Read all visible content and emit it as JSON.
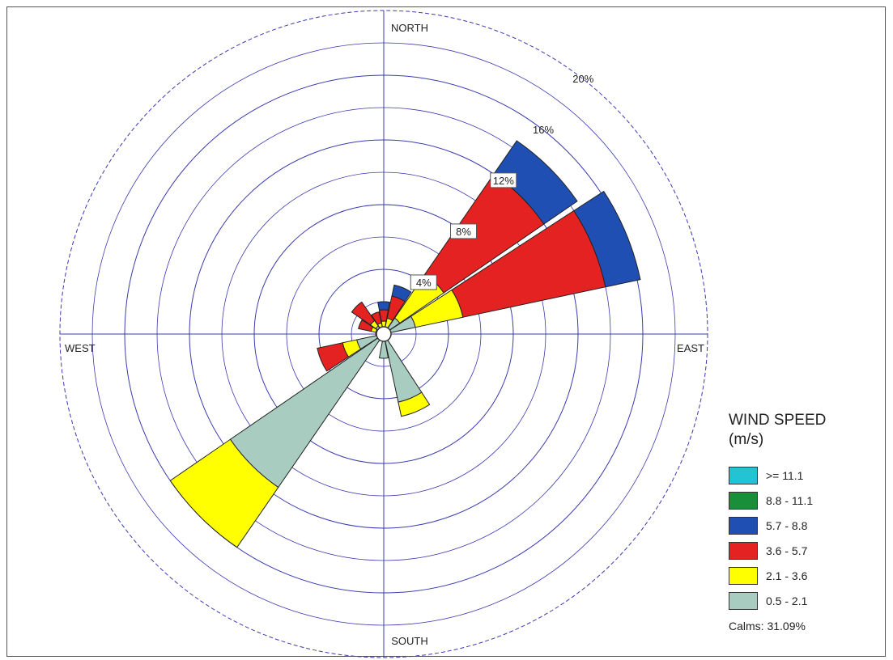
{
  "chart_data": {
    "type": "wind-rose",
    "radial_unit": "%",
    "radial_max": 20,
    "ring_labels": [
      "4%",
      "8%",
      "12%",
      "16%",
      "20%"
    ],
    "ring_values": [
      4,
      8,
      12,
      16,
      20
    ],
    "direction_labels": {
      "north": "NORTH",
      "south": "SOUTH",
      "east": "EAST",
      "west": "WEST"
    },
    "legend_title": "WIND SPEED",
    "legend_unit": "(m/s)",
    "speed_bins": [
      {
        "label": ">= 11.1",
        "color": "#22c4d4"
      },
      {
        "label": "8.8 - 11.1",
        "color": "#1a8f3a"
      },
      {
        "label": "5.7 -  8.8",
        "color": "#1f4fb3"
      },
      {
        "label": "3.6 -  5.7",
        "color": "#e52222"
      },
      {
        "label": "2.1 -  3.6",
        "color": "#ffff00"
      },
      {
        "label": "0.5 -  2.1",
        "color": "#a9ccc0"
      }
    ],
    "calms": "Calms: 31.09%",
    "sectors": [
      {
        "direction_deg": 0,
        "cumulative": [
          0.2,
          0.8,
          1.5,
          2.0
        ]
      },
      {
        "direction_deg": 22.5,
        "cumulative": [
          0.3,
          1.0,
          2.4,
          3.1
        ]
      },
      {
        "direction_deg": 45,
        "cumulative": [
          1.2,
          4.5,
          12.0,
          14.5
        ]
      },
      {
        "direction_deg": 67.5,
        "cumulative": [
          2.0,
          5.0,
          14.0,
          16.2
        ]
      },
      {
        "direction_deg": 90,
        "cumulative": [
          0.3,
          0.4,
          0.4,
          0.4
        ]
      },
      {
        "direction_deg": 135,
        "cumulative": [
          0.3,
          0.3,
          0.3,
          0.3
        ]
      },
      {
        "direction_deg": 157.5,
        "cumulative": [
          4.3,
          5.2,
          5.2,
          5.2
        ]
      },
      {
        "direction_deg": 180,
        "cumulative": [
          1.5,
          1.5,
          1.5,
          1.5
        ]
      },
      {
        "direction_deg": 202.5,
        "cumulative": [
          0.4,
          0.4,
          0.4,
          0.4
        ]
      },
      {
        "direction_deg": 225,
        "cumulative": [
          11.5,
          16.0,
          16.0,
          16.0
        ]
      },
      {
        "direction_deg": 247.5,
        "cumulative": [
          1.7,
          2.6,
          4.2,
          4.2
        ]
      },
      {
        "direction_deg": 270,
        "cumulative": [
          0.4,
          0.5,
          0.5,
          0.5
        ]
      },
      {
        "direction_deg": 292.5,
        "cumulative": [
          0.5,
          0.8,
          1.6,
          1.6
        ]
      },
      {
        "direction_deg": 315,
        "cumulative": [
          0.6,
          1.0,
          2.4,
          2.4
        ]
      },
      {
        "direction_deg": 337.5,
        "cumulative": [
          0.4,
          0.7,
          1.4,
          1.4
        ]
      }
    ],
    "segment_bins": [
      "0.5 -  2.1",
      "2.1 -  3.6",
      "3.6 -  5.7",
      "5.7 -  8.8"
    ]
  }
}
